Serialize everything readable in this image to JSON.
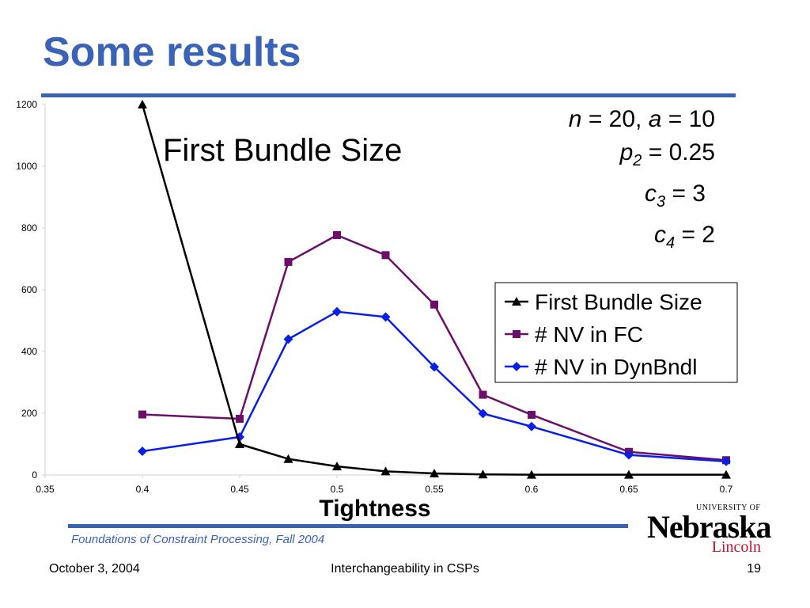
{
  "slide": {
    "title": "Some results",
    "parameters": [
      {
        "var": "n",
        "sub": "",
        "value": "= 20,"
      },
      {
        "var": "a",
        "sub": "",
        "value": "= 10"
      },
      {
        "var": "p",
        "sub": "2",
        "value": "= 0.25"
      },
      {
        "var": "c",
        "sub": "3",
        "value": "= 3"
      },
      {
        "var": "c",
        "sub": "4",
        "value": "= 2"
      }
    ],
    "footer": {
      "course": "Foundations of Constraint Processing, Fall 2004",
      "date": "October 3, 2004",
      "title": "Interchangeability in CSPs",
      "page": "19"
    },
    "logo": {
      "university": "UNIVERSITY OF",
      "name": "Nebraska",
      "campus": "Lincoln",
      "color": "#c8102e"
    },
    "accent_color": "#3a63b8"
  },
  "chart_data": {
    "type": "line",
    "title": "First Bundle Size",
    "xlabel": "Tightness",
    "ylabel": "",
    "xlim": [
      0.35,
      0.7
    ],
    "ylim": [
      0,
      1200
    ],
    "x_ticks": [
      "0.35",
      "0.4",
      "0.45",
      "0.5",
      "0.55",
      "0.6",
      "0.65",
      "0.7"
    ],
    "y_ticks": [
      "0",
      "200",
      "400",
      "600",
      "800",
      "1000",
      "1200"
    ],
    "grid": false,
    "legend_position": "right",
    "series": [
      {
        "name": "First Bundle Size",
        "color": "#000000",
        "marker": "triangle",
        "x": [
          0.4,
          0.45,
          0.475,
          0.5,
          0.525,
          0.55,
          0.575,
          0.6,
          0.65,
          0.7
        ],
        "values": [
          1200,
          100,
          52,
          28,
          12,
          5,
          2,
          1,
          1,
          1
        ]
      },
      {
        "name": "# NV in FC",
        "color": "#6b0f6b",
        "marker": "square",
        "x": [
          0.4,
          0.45,
          0.475,
          0.5,
          0.525,
          0.55,
          0.575,
          0.6,
          0.65,
          0.7
        ],
        "values": [
          196,
          182,
          690,
          777,
          712,
          552,
          260,
          195,
          75,
          48
        ]
      },
      {
        "name": "# NV in DynBndl",
        "color": "#0a1fe6",
        "marker": "diamond",
        "x": [
          0.4,
          0.45,
          0.475,
          0.5,
          0.525,
          0.55,
          0.575,
          0.6,
          0.65,
          0.7
        ],
        "values": [
          77,
          123,
          440,
          529,
          512,
          350,
          199,
          157,
          65,
          44
        ]
      }
    ]
  }
}
